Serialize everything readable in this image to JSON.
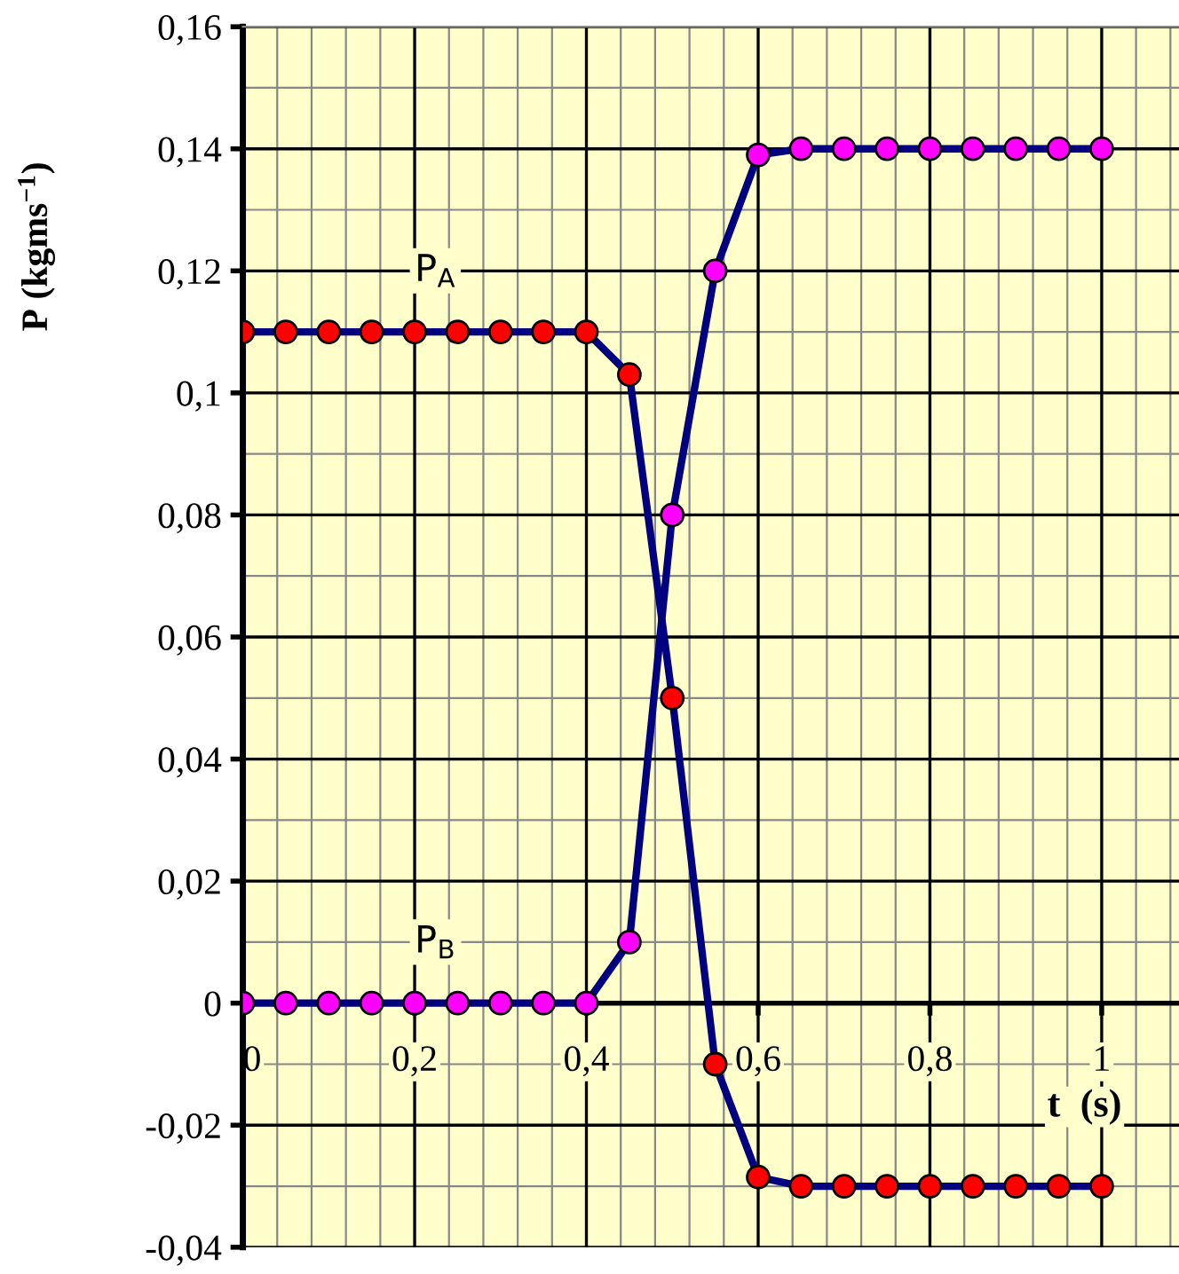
{
  "chart_data": {
    "type": "line",
    "xlabel": "t  (s)",
    "ylabel": "P (kgms$^{−1}$)",
    "x": [
      0,
      0.05,
      0.1,
      0.15,
      0.2,
      0.25,
      0.3,
      0.35,
      0.4,
      0.45,
      0.5,
      0.55,
      0.6,
      0.65,
      0.7,
      0.75,
      0.8,
      0.85,
      0.9,
      0.95,
      1
    ],
    "series": [
      {
        "name": "P$_{A}$",
        "color": "#ff0000",
        "values": [
          0.11,
          0.11,
          0.11,
          0.11,
          0.11,
          0.11,
          0.11,
          0.11,
          0.11,
          0.103,
          0.05,
          -0.01,
          -0.0285,
          -0.03,
          -0.03,
          -0.03,
          -0.03,
          -0.03,
          -0.03,
          -0.03,
          -0.03
        ]
      },
      {
        "name": "P$_{B}$",
        "color": "#ff00ff",
        "values": [
          0,
          0,
          0,
          0,
          0,
          0,
          0,
          0,
          0,
          0.01,
          0.08,
          0.12,
          0.139,
          0.14,
          0.14,
          0.14,
          0.14,
          0.14,
          0.14,
          0.14,
          0.14
        ]
      }
    ],
    "xlim": [
      0,
      1.09
    ],
    "ylim": [
      -0.04,
      0.16
    ],
    "xticks": [
      0,
      {
        "value": 0.2,
        "label": "0,2"
      },
      {
        "value": 0.4,
        "label": "0,4"
      },
      {
        "value": 0.6,
        "label": "0,6"
      },
      {
        "value": 0.8,
        "label": "0,8"
      },
      1
    ],
    "yticks": [
      {
        "value": -0.04,
        "label": "-0,04"
      },
      {
        "value": -0.02,
        "label": "-0,02"
      },
      0,
      {
        "value": 0.02,
        "label": "0,02"
      },
      {
        "value": 0.04,
        "label": "0,04"
      },
      {
        "value": 0.06,
        "label": "0,06"
      },
      {
        "value": 0.08,
        "label": "0,08"
      },
      {
        "value": 0.1,
        "label": "0,1"
      },
      {
        "value": 0.12,
        "label": "0,12"
      },
      {
        "value": 0.14,
        "label": "0,14"
      },
      {
        "value": 0.16,
        "label": "0,16"
      }
    ],
    "grid": true,
    "legend": false,
    "marker": "circle",
    "line_style": "solid"
  }
}
